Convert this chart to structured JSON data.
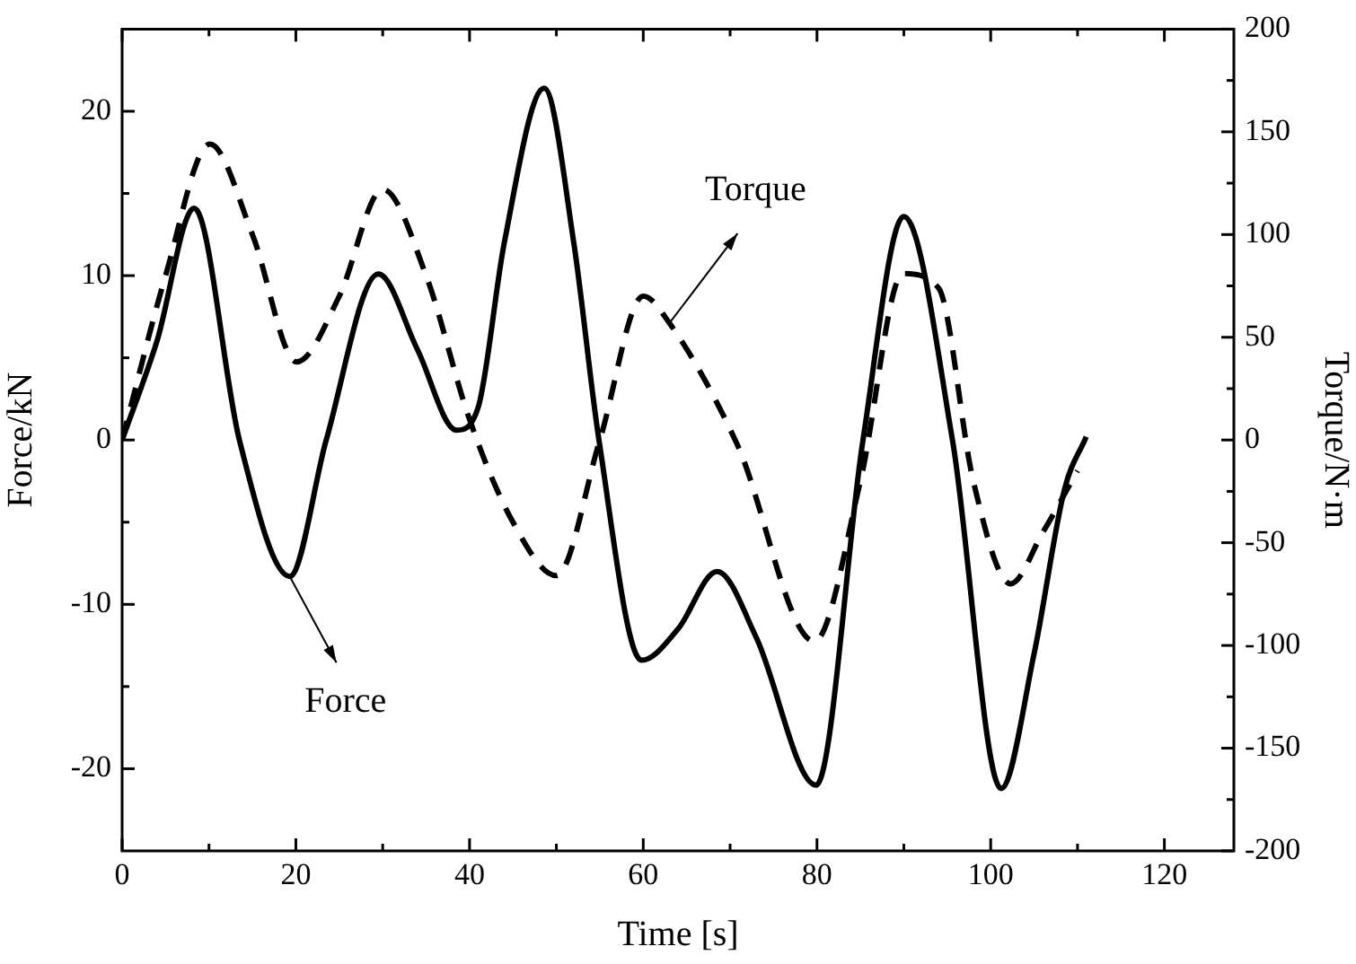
{
  "chart_data": {
    "type": "line",
    "xlabel": "Time [s]",
    "ylabel": "Force/kN",
    "y2label": "Torque/N·m",
    "xlim": [
      0,
      128
    ],
    "xticks": [
      0,
      20,
      40,
      60,
      80,
      100,
      120
    ],
    "ylim": [
      -25,
      25
    ],
    "yticks": [
      -20,
      -10,
      0,
      10,
      20
    ],
    "y2lim": [
      -200,
      200
    ],
    "y2ticks": [
      -200,
      -150,
      -100,
      -50,
      0,
      50,
      100,
      150,
      200
    ],
    "grid": false,
    "legend": false,
    "marker": "none",
    "series": [
      {
        "color": "#000000",
        "line_style": "solid",
        "x": [
          0,
          4,
          8.3,
          13.5,
          19.3,
          23.5,
          29.5,
          34,
          38.5,
          41,
          44,
          48.6,
          52,
          54.9,
          59.8,
          64,
          68.5,
          73,
          79.9,
          85.3,
          90,
          95.6,
          101.2,
          105,
          108.5,
          111
        ],
        "values": [
          0,
          6,
          14.1,
          0,
          -8.3,
          0,
          10.1,
          5.5,
          0.6,
          2,
          12,
          21.4,
          12,
          0,
          -13.4,
          -11.5,
          -8,
          -12,
          -21,
          0,
          13.6,
          0,
          -21.2,
          -13,
          -3,
          0.2
        ]
      },
      {
        "axis": "y2",
        "color": "#000000",
        "line_style": "dashed",
        "x": [
          0,
          5,
          10.1,
          15,
          20.1,
          25,
          30,
          35,
          40,
          45,
          50,
          55,
          60,
          63,
          70.8,
          79.7,
          85,
          89.9,
          94,
          98,
          102.3,
          106,
          110
        ],
        "values": [
          0,
          80,
          144,
          100,
          38,
          70,
          122,
          80,
          10,
          -40,
          -66,
          0,
          70,
          57,
          -2,
          -98,
          -20,
          81,
          74,
          -20,
          -70,
          -45,
          -15
        ]
      }
    ],
    "annotations": [
      {
        "text": "Force",
        "x": 19.3,
        "y": -8.3
      },
      {
        "text": "Torque",
        "x": 63,
        "y": 7.1
      }
    ]
  }
}
